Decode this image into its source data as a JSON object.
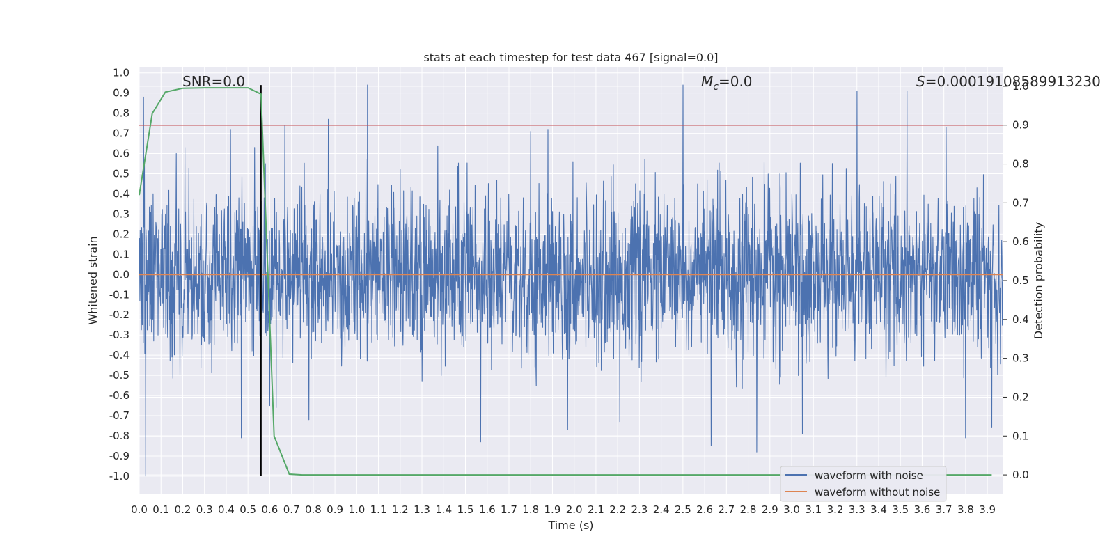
{
  "chart_data": {
    "type": "line",
    "title": "stats at each timestep for test data 467 [signal=0.0]",
    "xlabel": "Time (s)",
    "ylabel": "Whitened strain",
    "y2label": "Detection probability",
    "xlim": [
      0.0,
      3.97
    ],
    "ylim": [
      -1.09,
      1.03
    ],
    "y2lim": [
      -0.05,
      1.05
    ],
    "xticks": [
      "0.0",
      "0.1",
      "0.2",
      "0.3",
      "0.4",
      "0.5",
      "0.6",
      "0.7",
      "0.8",
      "0.9",
      "1.0",
      "1.1",
      "1.2",
      "1.3",
      "1.4",
      "1.5",
      "1.6",
      "1.7",
      "1.8",
      "1.9",
      "2.0",
      "2.1",
      "2.2",
      "2.3",
      "2.4",
      "2.5",
      "2.6",
      "2.7",
      "2.8",
      "2.9",
      "3.0",
      "3.1",
      "3.2",
      "3.3",
      "3.4",
      "3.5",
      "3.6",
      "3.7",
      "3.8",
      "3.9"
    ],
    "yticks": [
      "1.0",
      "0.9",
      "0.8",
      "0.7",
      "0.6",
      "0.5",
      "0.4",
      "0.3",
      "0.2",
      "0.1",
      "0.0",
      "-0.1",
      "-0.2",
      "-0.3",
      "-0.4",
      "-0.5",
      "-0.6",
      "-0.7",
      "-0.8",
      "-0.9",
      "-1.0"
    ],
    "y2ticks": [
      "1.0",
      "0.9",
      "0.8",
      "0.7",
      "0.6",
      "0.5",
      "0.4",
      "0.3",
      "0.2",
      "0.1",
      "0.0"
    ],
    "annotations": {
      "snr": "SNR=0.0",
      "mc_symbol": "M",
      "mc_sub": "c",
      "mc_value": "=0.0",
      "s_symbol": "S",
      "s_value": "=0.00019108589913230"
    },
    "threshold": 0.9,
    "marker_time": 0.56,
    "series": [
      {
        "name": "waveform with noise",
        "color": "#4c72b0",
        "description": "dense random noise",
        "spikes": [
          [
            0.02,
            0.88
          ],
          [
            0.03,
            -1.0
          ],
          [
            0.17,
            0.6
          ],
          [
            0.21,
            0.63
          ],
          [
            0.42,
            0.72
          ],
          [
            0.47,
            -0.81
          ],
          [
            0.53,
            0.63
          ],
          [
            0.56,
            -0.56
          ],
          [
            0.58,
            0.55
          ],
          [
            0.6,
            -0.65
          ],
          [
            0.63,
            -0.66
          ],
          [
            0.67,
            0.74
          ],
          [
            0.78,
            -0.72
          ],
          [
            0.87,
            0.77
          ],
          [
            1.05,
            0.94
          ],
          [
            1.57,
            -0.83
          ],
          [
            1.8,
            0.71
          ],
          [
            1.88,
            0.72
          ],
          [
            1.97,
            -0.77
          ],
          [
            2.21,
            -0.73
          ],
          [
            2.5,
            0.94
          ],
          [
            2.63,
            -0.85
          ],
          [
            2.84,
            -0.88
          ],
          [
            3.05,
            -0.79
          ],
          [
            3.3,
            0.91
          ],
          [
            3.53,
            0.91
          ],
          [
            3.71,
            0.73
          ],
          [
            3.8,
            -0.81
          ],
          [
            3.92,
            -0.76
          ]
        ]
      },
      {
        "name": "waveform without noise",
        "color": "#dd8452",
        "value": 0.0
      },
      {
        "name": "detection probability",
        "color": "#55a868",
        "axis": "right",
        "x": [
          0.0,
          0.06,
          0.12,
          0.2,
          0.3,
          0.4,
          0.5,
          0.56,
          0.62,
          0.69,
          0.75,
          3.92
        ],
        "y": [
          0.72,
          0.93,
          0.985,
          0.995,
          0.996,
          0.996,
          0.996,
          0.98,
          0.1,
          0.002,
          0.0,
          0.0
        ]
      }
    ],
    "legend": [
      "waveform with noise",
      "waveform without noise"
    ],
    "legend_position": "lower-right",
    "colors": {
      "background": "#eaeaf2",
      "grid": "#ffffff",
      "threshold": "#c44e52",
      "marker": "#000000"
    }
  }
}
